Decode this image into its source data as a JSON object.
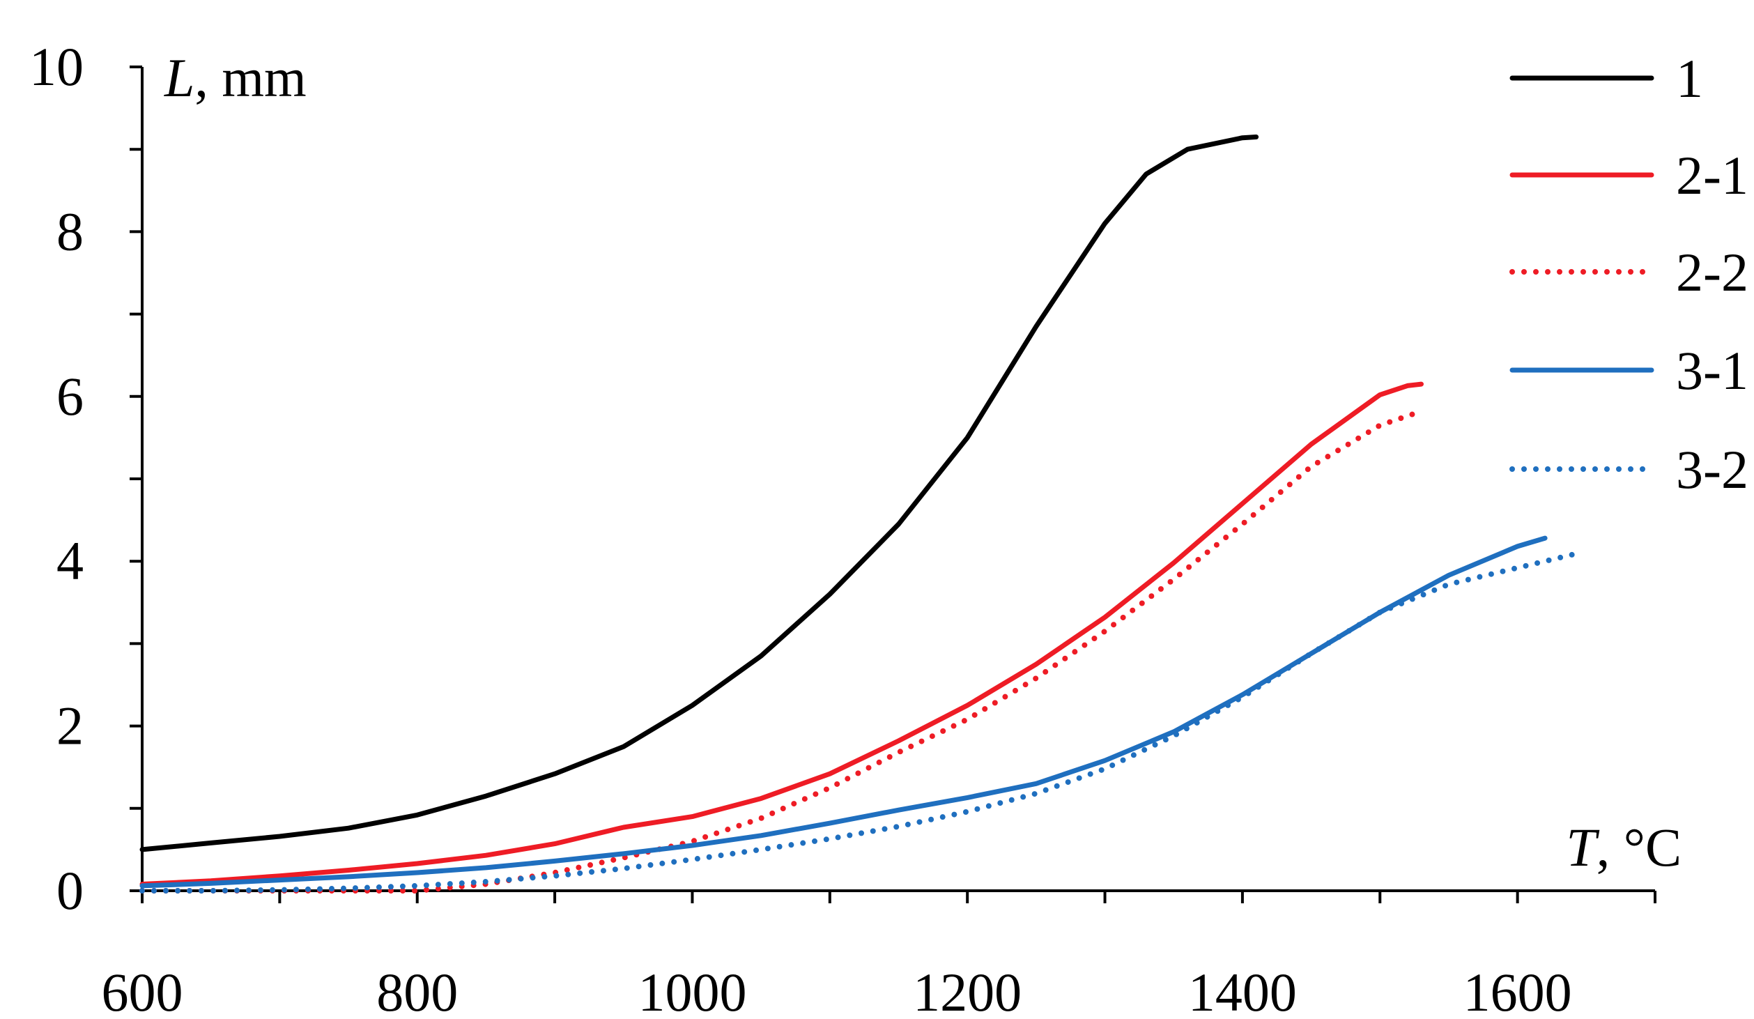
{
  "chart_data": {
    "type": "line",
    "title": "",
    "xlabel_italic": "T",
    "xlabel_unit": ", °C",
    "ylabel_italic": "L",
    "ylabel_unit": ", mm",
    "xlim": [
      600,
      1700
    ],
    "ylim": [
      0,
      10
    ],
    "x_ticks": [
      600,
      800,
      1000,
      1200,
      1400,
      1600
    ],
    "x_tick_labels": [
      "600",
      "800",
      "1000",
      "1200",
      "1400",
      "1600"
    ],
    "x_minor_step": 100,
    "y_ticks": [
      0,
      2,
      4,
      6,
      8,
      10
    ],
    "y_tick_labels": [
      "0",
      "2",
      "4",
      "6",
      "8",
      "10"
    ],
    "y_minor_step": 1,
    "grid": false,
    "legend_position": "top-right",
    "series": [
      {
        "name": "1",
        "color": "#000000",
        "dash": "solid",
        "points": [
          [
            600,
            0.5
          ],
          [
            650,
            0.58
          ],
          [
            700,
            0.66
          ],
          [
            750,
            0.76
          ],
          [
            800,
            0.92
          ],
          [
            850,
            1.15
          ],
          [
            900,
            1.42
          ],
          [
            950,
            1.75
          ],
          [
            1000,
            2.25
          ],
          [
            1050,
            2.85
          ],
          [
            1100,
            3.6
          ],
          [
            1150,
            4.45
          ],
          [
            1200,
            5.5
          ],
          [
            1250,
            6.85
          ],
          [
            1300,
            8.1
          ],
          [
            1330,
            8.7
          ],
          [
            1360,
            9.0
          ],
          [
            1400,
            9.14
          ],
          [
            1410,
            9.15
          ]
        ]
      },
      {
        "name": "2-1",
        "color": "#ee1c25",
        "dash": "solid",
        "points": [
          [
            600,
            0.08
          ],
          [
            650,
            0.12
          ],
          [
            700,
            0.18
          ],
          [
            750,
            0.25
          ],
          [
            800,
            0.33
          ],
          [
            850,
            0.43
          ],
          [
            900,
            0.57
          ],
          [
            950,
            0.77
          ],
          [
            1000,
            0.9
          ],
          [
            1050,
            1.12
          ],
          [
            1100,
            1.42
          ],
          [
            1150,
            1.82
          ],
          [
            1200,
            2.25
          ],
          [
            1250,
            2.75
          ],
          [
            1300,
            3.32
          ],
          [
            1350,
            3.98
          ],
          [
            1400,
            4.7
          ],
          [
            1450,
            5.42
          ],
          [
            1500,
            6.02
          ],
          [
            1520,
            6.13
          ],
          [
            1530,
            6.15
          ]
        ]
      },
      {
        "name": "2-2",
        "color": "#ee1c25",
        "dash": "dotted",
        "points": [
          [
            600,
            0.0
          ],
          [
            700,
            0.0
          ],
          [
            800,
            0.0
          ],
          [
            850,
            0.08
          ],
          [
            900,
            0.22
          ],
          [
            950,
            0.4
          ],
          [
            1000,
            0.6
          ],
          [
            1050,
            0.88
          ],
          [
            1100,
            1.25
          ],
          [
            1150,
            1.68
          ],
          [
            1200,
            2.08
          ],
          [
            1250,
            2.58
          ],
          [
            1300,
            3.15
          ],
          [
            1350,
            3.78
          ],
          [
            1400,
            4.45
          ],
          [
            1450,
            5.15
          ],
          [
            1500,
            5.65
          ],
          [
            1530,
            5.82
          ]
        ]
      },
      {
        "name": "3-1",
        "color": "#1f6fbf",
        "dash": "solid",
        "points": [
          [
            600,
            0.06
          ],
          [
            650,
            0.09
          ],
          [
            700,
            0.13
          ],
          [
            750,
            0.17
          ],
          [
            800,
            0.22
          ],
          [
            850,
            0.28
          ],
          [
            900,
            0.36
          ],
          [
            950,
            0.45
          ],
          [
            1000,
            0.55
          ],
          [
            1050,
            0.67
          ],
          [
            1100,
            0.82
          ],
          [
            1150,
            0.98
          ],
          [
            1200,
            1.13
          ],
          [
            1250,
            1.3
          ],
          [
            1300,
            1.58
          ],
          [
            1350,
            1.93
          ],
          [
            1400,
            2.38
          ],
          [
            1450,
            2.88
          ],
          [
            1500,
            3.38
          ],
          [
            1550,
            3.83
          ],
          [
            1600,
            4.18
          ],
          [
            1620,
            4.28
          ]
        ]
      },
      {
        "name": "3-2",
        "color": "#1f6fbf",
        "dash": "dotted",
        "points": [
          [
            600,
            0.0
          ],
          [
            650,
            0.0
          ],
          [
            700,
            0.01
          ],
          [
            750,
            0.03
          ],
          [
            800,
            0.06
          ],
          [
            850,
            0.11
          ],
          [
            900,
            0.18
          ],
          [
            950,
            0.27
          ],
          [
            1000,
            0.38
          ],
          [
            1050,
            0.5
          ],
          [
            1100,
            0.63
          ],
          [
            1150,
            0.78
          ],
          [
            1200,
            0.96
          ],
          [
            1250,
            1.18
          ],
          [
            1300,
            1.48
          ],
          [
            1350,
            1.88
          ],
          [
            1400,
            2.35
          ],
          [
            1450,
            2.88
          ],
          [
            1500,
            3.38
          ],
          [
            1550,
            3.72
          ],
          [
            1600,
            3.92
          ],
          [
            1640,
            4.08
          ]
        ]
      }
    ]
  }
}
